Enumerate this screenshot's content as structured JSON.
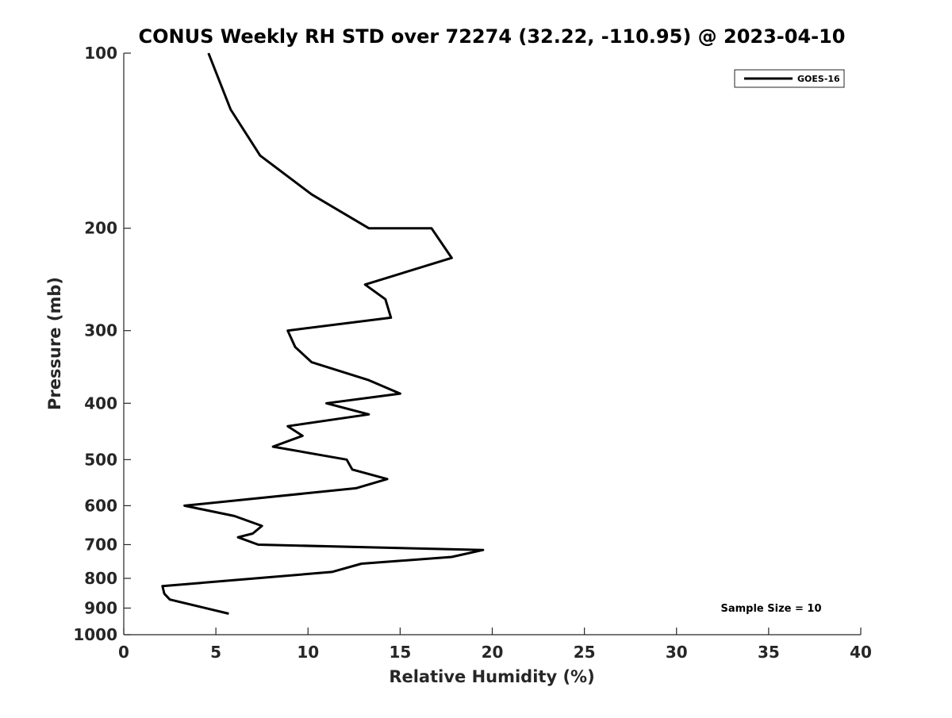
{
  "chart_data": {
    "type": "line",
    "title": "CONUS Weekly RH STD over 72274 (32.22, -110.95) @ 2023-04-10",
    "xlabel": "Relative Humidity (%)",
    "ylabel": "Pressure (mb)",
    "xlim": [
      0,
      40
    ],
    "ylim": [
      1000,
      100
    ],
    "y_scale": "log",
    "y_direction": "reversed",
    "xticks": [
      "0",
      "5",
      "10",
      "15",
      "20",
      "25",
      "30",
      "35",
      "40"
    ],
    "xtick_values": [
      0,
      5,
      10,
      15,
      20,
      25,
      30,
      35,
      40
    ],
    "yticks": [
      "100",
      "200",
      "300",
      "400",
      "500",
      "600",
      "700",
      "800",
      "900",
      "1000"
    ],
    "ytick_values": [
      100,
      200,
      300,
      400,
      500,
      600,
      700,
      800,
      900,
      1000
    ],
    "grid": false,
    "legend_position": "top-right",
    "series": [
      {
        "name": "GOES-16",
        "color": "#000000",
        "points": [
          {
            "x": 4.6,
            "y": 100
          },
          {
            "x": 5.8,
            "y": 125
          },
          {
            "x": 7.4,
            "y": 150
          },
          {
            "x": 10.2,
            "y": 175
          },
          {
            "x": 13.3,
            "y": 200
          },
          {
            "x": 16.7,
            "y": 200
          },
          {
            "x": 17.8,
            "y": 225
          },
          {
            "x": 13.1,
            "y": 250
          },
          {
            "x": 14.2,
            "y": 265
          },
          {
            "x": 14.5,
            "y": 285
          },
          {
            "x": 8.9,
            "y": 300
          },
          {
            "x": 9.3,
            "y": 320
          },
          {
            "x": 10.2,
            "y": 340
          },
          {
            "x": 13.3,
            "y": 365
          },
          {
            "x": 15.0,
            "y": 385
          },
          {
            "x": 11.0,
            "y": 400
          },
          {
            "x": 13.3,
            "y": 418
          },
          {
            "x": 8.9,
            "y": 438
          },
          {
            "x": 9.7,
            "y": 455
          },
          {
            "x": 8.1,
            "y": 475
          },
          {
            "x": 12.1,
            "y": 500
          },
          {
            "x": 12.4,
            "y": 520
          },
          {
            "x": 14.3,
            "y": 540
          },
          {
            "x": 12.6,
            "y": 560
          },
          {
            "x": 3.3,
            "y": 600
          },
          {
            "x": 6.0,
            "y": 625
          },
          {
            "x": 7.5,
            "y": 650
          },
          {
            "x": 7.0,
            "y": 670
          },
          {
            "x": 6.2,
            "y": 680
          },
          {
            "x": 7.3,
            "y": 700
          },
          {
            "x": 19.5,
            "y": 715
          },
          {
            "x": 17.8,
            "y": 735
          },
          {
            "x": 12.9,
            "y": 755
          },
          {
            "x": 11.3,
            "y": 780
          },
          {
            "x": 2.1,
            "y": 825
          },
          {
            "x": 2.2,
            "y": 850
          },
          {
            "x": 2.5,
            "y": 870
          },
          {
            "x": 5.7,
            "y": 920
          }
        ]
      }
    ],
    "annotations": [
      {
        "text": "Sample Size = 10",
        "position": "bottom-right"
      }
    ]
  }
}
